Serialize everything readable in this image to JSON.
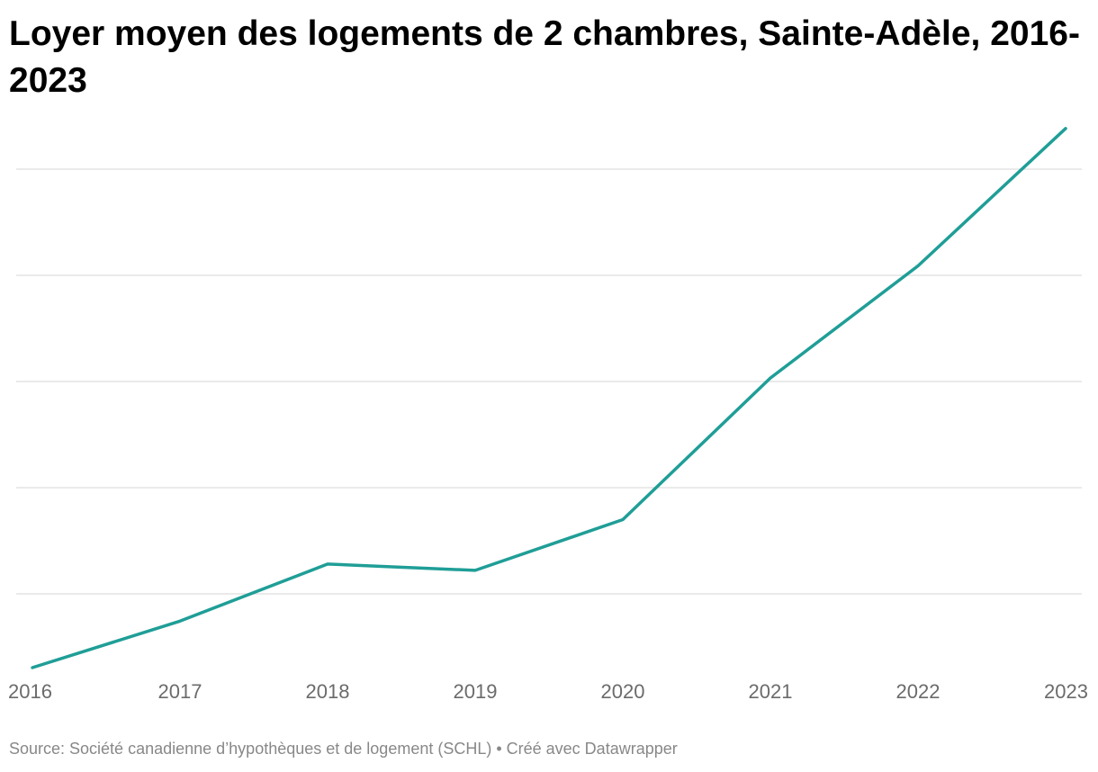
{
  "title": "Loyer moyen des logements de 2 chambres, Sainte-Adèle, 2016-2023",
  "source": "Source: Société canadienne d’hypothèques et de logement (SCHL) • Créé avec Datawrapper",
  "chart_data": {
    "type": "line",
    "title": "Loyer moyen des logements de 2 chambres, Sainte-Adèle, 2016-2023",
    "xlabel": "",
    "ylabel": "",
    "categories": [
      "2016",
      "2017",
      "2018",
      "2019",
      "2020",
      "2021",
      "2022",
      "2023"
    ],
    "series": [
      {
        "values": [
          0,
          44,
          98,
          92,
          140,
          274,
          380,
          510
        ]
      }
    ],
    "ylim": [
      0,
      520
    ],
    "grid": true,
    "line_color": "#1f9e97",
    "grid_color": "#e3e3e3"
  }
}
